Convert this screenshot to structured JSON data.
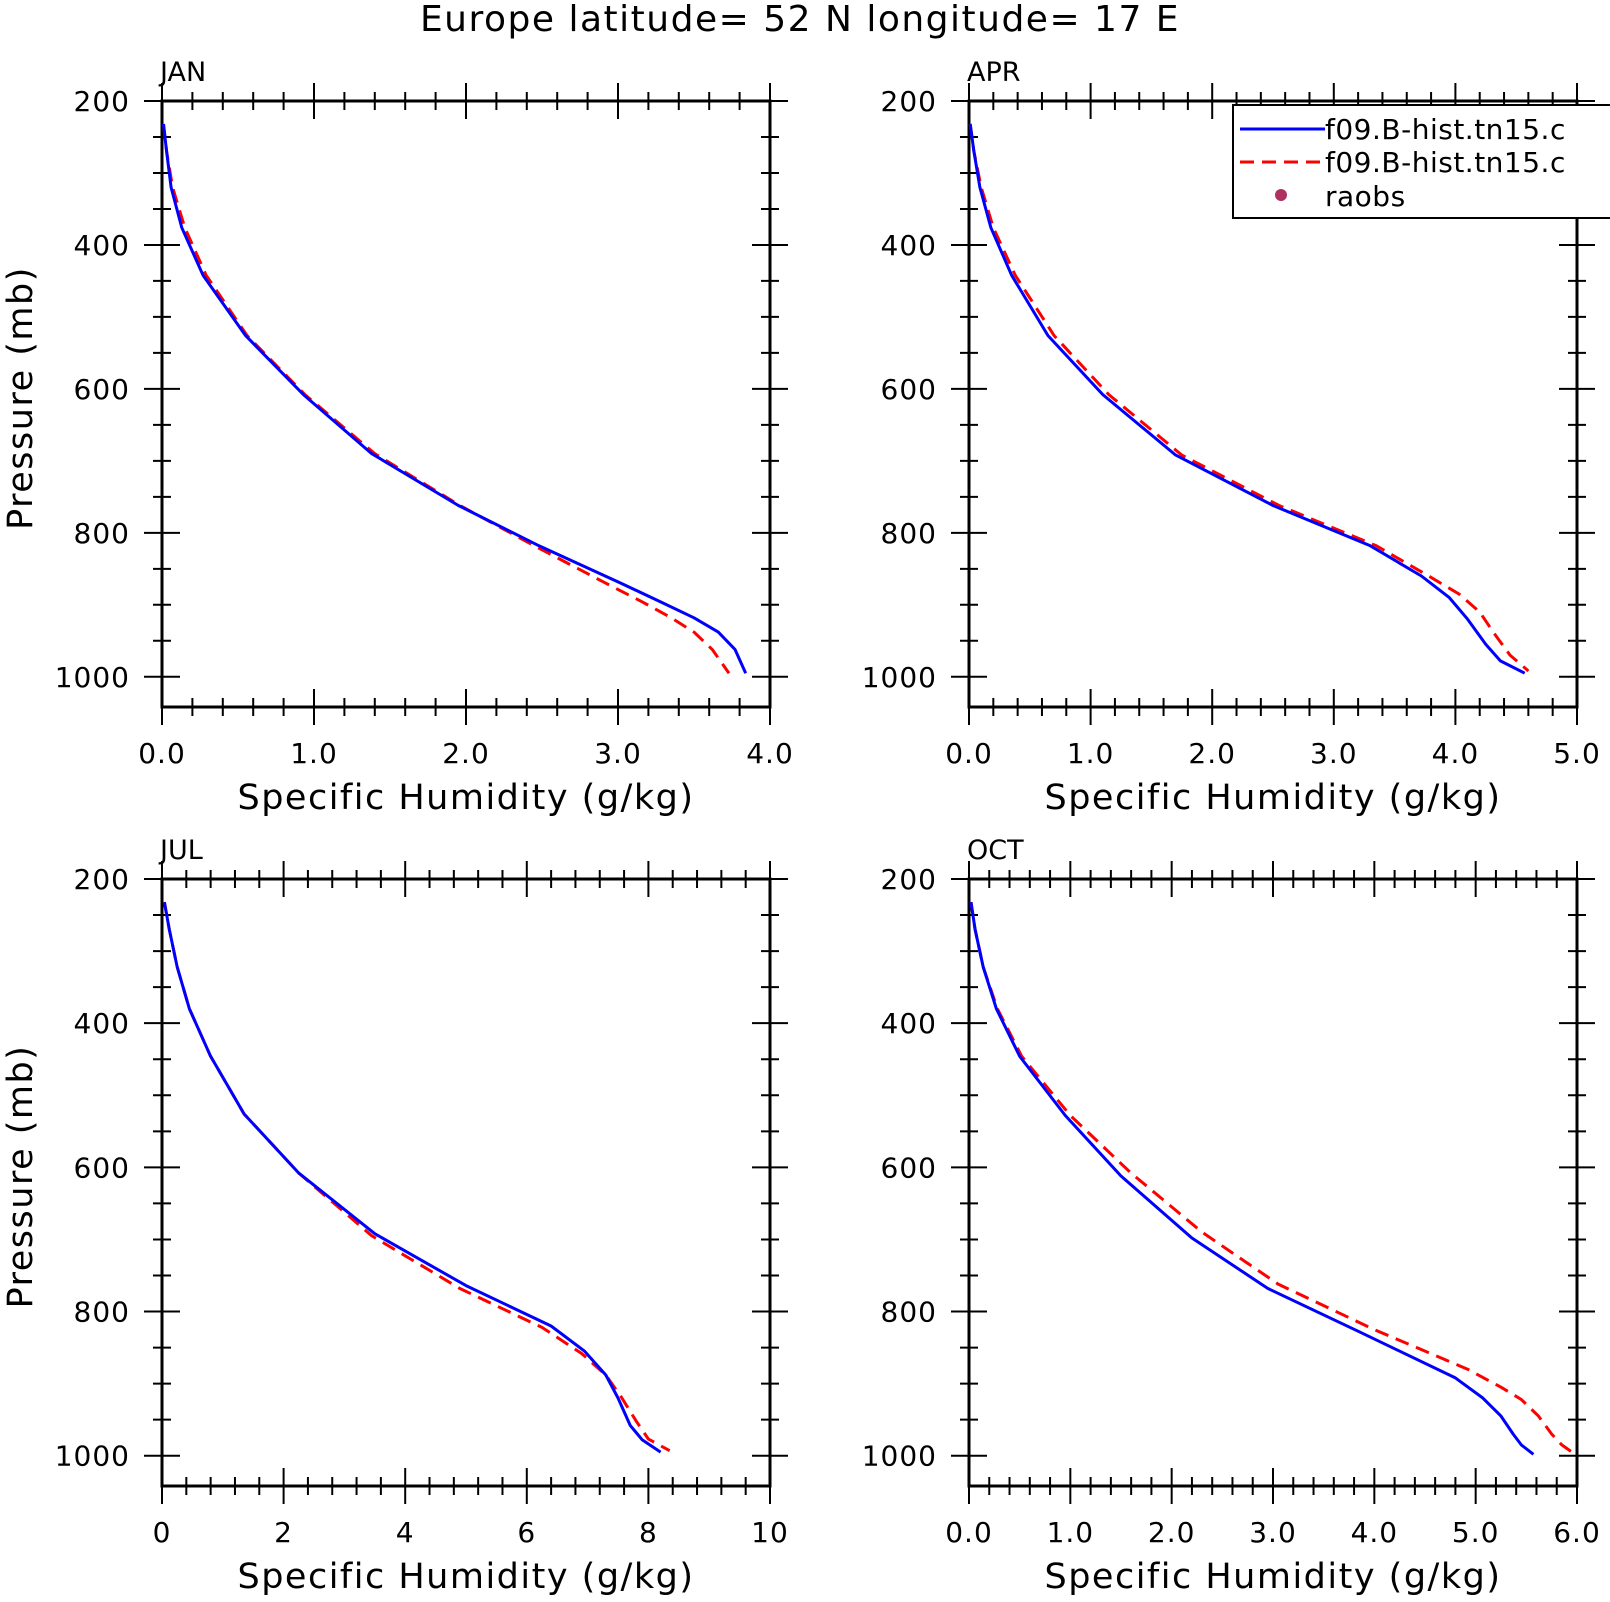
{
  "title": "Europe  latitude= 52 N longitude= 17 E",
  "legend": {
    "entries": [
      {
        "label": "f09.B-hist.tn15.c",
        "color": "#0000ff",
        "style": "solid"
      },
      {
        "label": "f09.B-hist.tn15.c",
        "color": "#ff0000",
        "style": "dashed"
      },
      {
        "label": "raobs",
        "color": "#b03060",
        "style": "marker"
      }
    ]
  },
  "chart_data": [
    {
      "type": "line",
      "title": "JAN",
      "xlabel": "Specific Humidity (g/kg)",
      "ylabel": "Pressure (mb)",
      "xlim": [
        0,
        4
      ],
      "ylim": [
        1000,
        200
      ],
      "y_inverted": true,
      "xticks": [
        0,
        1,
        2,
        3,
        4
      ],
      "xtick_labels": [
        "0.0",
        "1.0",
        "2.0",
        "3.0",
        "4.0"
      ],
      "yticks": [
        200,
        400,
        600,
        800,
        1000
      ],
      "ytick_labels": [
        "200",
        "400",
        "600",
        "800",
        "1000"
      ],
      "series": [
        {
          "color": "#0000ff",
          "style": "solid",
          "points": [
            [
              0.01,
              232
            ],
            [
              0.03,
              270
            ],
            [
              0.06,
              320
            ],
            [
              0.13,
              376
            ],
            [
              0.27,
              442
            ],
            [
              0.55,
              526
            ],
            [
              0.93,
              608
            ],
            [
              1.38,
              690
            ],
            [
              1.95,
              762
            ],
            [
              2.48,
              818
            ],
            [
              3.02,
              870
            ],
            [
              3.28,
              896
            ],
            [
              3.5,
              918
            ],
            [
              3.66,
              938
            ],
            [
              3.77,
              962
            ],
            [
              3.84,
              995
            ]
          ]
        },
        {
          "color": "#ff0000",
          "style": "dashed",
          "points": [
            [
              0.01,
              232
            ],
            [
              0.03,
              270
            ],
            [
              0.07,
              320
            ],
            [
              0.15,
              376
            ],
            [
              0.29,
              442
            ],
            [
              0.56,
              526
            ],
            [
              0.94,
              608
            ],
            [
              1.4,
              690
            ],
            [
              1.96,
              762
            ],
            [
              2.45,
              818
            ],
            [
              2.92,
              870
            ],
            [
              3.16,
              896
            ],
            [
              3.35,
              918
            ],
            [
              3.5,
              938
            ],
            [
              3.62,
              962
            ],
            [
              3.73,
              995
            ]
          ]
        }
      ]
    },
    {
      "type": "line",
      "title": "APR",
      "xlabel": "Specific Humidity (g/kg)",
      "ylabel": "",
      "xlim": [
        0,
        5
      ],
      "ylim": [
        1000,
        200
      ],
      "y_inverted": true,
      "xticks": [
        0,
        1,
        2,
        3,
        4,
        5
      ],
      "xtick_labels": [
        "0.0",
        "1.0",
        "2.0",
        "3.0",
        "4.0",
        "5.0"
      ],
      "yticks": [
        200,
        400,
        600,
        800,
        1000
      ],
      "ytick_labels": [
        "200",
        "400",
        "600",
        "800",
        "1000"
      ],
      "series": [
        {
          "color": "#0000ff",
          "style": "solid",
          "points": [
            [
              0.01,
              232
            ],
            [
              0.04,
              270
            ],
            [
              0.09,
              320
            ],
            [
              0.18,
              376
            ],
            [
              0.35,
              442
            ],
            [
              0.65,
              526
            ],
            [
              1.1,
              608
            ],
            [
              1.7,
              692
            ],
            [
              2.5,
              762
            ],
            [
              3.3,
              818
            ],
            [
              3.72,
              860
            ],
            [
              3.95,
              890
            ],
            [
              4.1,
              920
            ],
            [
              4.25,
              955
            ],
            [
              4.37,
              978
            ],
            [
              4.57,
              995
            ]
          ]
        },
        {
          "color": "#ff0000",
          "style": "dashed",
          "points": [
            [
              0.01,
              232
            ],
            [
              0.04,
              270
            ],
            [
              0.1,
              320
            ],
            [
              0.2,
              376
            ],
            [
              0.38,
              442
            ],
            [
              0.7,
              526
            ],
            [
              1.15,
              608
            ],
            [
              1.75,
              692
            ],
            [
              2.55,
              762
            ],
            [
              3.35,
              818
            ],
            [
              3.78,
              860
            ],
            [
              4.03,
              885
            ],
            [
              4.2,
              910
            ],
            [
              4.32,
              940
            ],
            [
              4.45,
              970
            ],
            [
              4.6,
              992
            ]
          ]
        }
      ]
    },
    {
      "type": "line",
      "title": "JUL",
      "xlabel": "Specific Humidity (g/kg)",
      "ylabel": "Pressure (mb)",
      "xlim": [
        0,
        10
      ],
      "ylim": [
        1000,
        200
      ],
      "y_inverted": true,
      "xticks": [
        0,
        2,
        4,
        6,
        8,
        10
      ],
      "xtick_labels": [
        "0",
        "2",
        "4",
        "6",
        "8",
        "10"
      ],
      "yticks": [
        200,
        400,
        600,
        800,
        1000
      ],
      "ytick_labels": [
        "200",
        "400",
        "600",
        "800",
        "1000"
      ],
      "series": [
        {
          "color": "#0000ff",
          "style": "solid",
          "points": [
            [
              0.04,
              232
            ],
            [
              0.12,
              270
            ],
            [
              0.25,
              322
            ],
            [
              0.45,
              380
            ],
            [
              0.8,
              446
            ],
            [
              1.35,
              526
            ],
            [
              2.25,
              608
            ],
            [
              3.5,
              692
            ],
            [
              5.0,
              764
            ],
            [
              6.4,
              820
            ],
            [
              6.95,
              855
            ],
            [
              7.3,
              888
            ],
            [
              7.5,
              920
            ],
            [
              7.7,
              958
            ],
            [
              7.9,
              978
            ],
            [
              8.2,
              995
            ]
          ]
        },
        {
          "color": "#ff0000",
          "style": "dashed",
          "points": [
            [
              0.04,
              232
            ],
            [
              0.12,
              270
            ],
            [
              0.25,
              322
            ],
            [
              0.45,
              380
            ],
            [
              0.8,
              446
            ],
            [
              1.35,
              526
            ],
            [
              2.25,
              608
            ],
            [
              3.45,
              695
            ],
            [
              4.9,
              768
            ],
            [
              6.25,
              822
            ],
            [
              6.9,
              858
            ],
            [
              7.3,
              888
            ],
            [
              7.55,
              918
            ],
            [
              7.8,
              952
            ],
            [
              8.0,
              977
            ],
            [
              8.35,
              993
            ]
          ]
        }
      ]
    },
    {
      "type": "line",
      "title": "OCT",
      "xlabel": "Specific Humidity (g/kg)",
      "ylabel": "",
      "xlim": [
        0,
        6
      ],
      "ylim": [
        1000,
        200
      ],
      "y_inverted": true,
      "xticks": [
        0,
        1,
        2,
        3,
        4,
        5,
        6
      ],
      "xtick_labels": [
        "0.0",
        "1.0",
        "2.0",
        "3.0",
        "4.0",
        "5.0",
        "6.0"
      ],
      "yticks": [
        200,
        400,
        600,
        800,
        1000
      ],
      "ytick_labels": [
        "200",
        "400",
        "600",
        "800",
        "1000"
      ],
      "series": [
        {
          "color": "#0000ff",
          "style": "solid",
          "points": [
            [
              0.02,
              232
            ],
            [
              0.06,
              270
            ],
            [
              0.14,
              322
            ],
            [
              0.27,
              380
            ],
            [
              0.5,
              446
            ],
            [
              0.95,
              528
            ],
            [
              1.5,
              612
            ],
            [
              2.2,
              698
            ],
            [
              2.95,
              768
            ],
            [
              3.85,
              828
            ],
            [
              4.8,
              892
            ],
            [
              5.07,
              920
            ],
            [
              5.25,
              945
            ],
            [
              5.37,
              970
            ],
            [
              5.45,
              985
            ],
            [
              5.57,
              998
            ]
          ]
        },
        {
          "color": "#ff0000",
          "style": "dashed",
          "points": [
            [
              0.02,
              232
            ],
            [
              0.06,
              270
            ],
            [
              0.14,
              322
            ],
            [
              0.28,
              380
            ],
            [
              0.52,
              446
            ],
            [
              1.0,
              528
            ],
            [
              1.6,
              608
            ],
            [
              2.3,
              690
            ],
            [
              3.05,
              762
            ],
            [
              4.0,
              825
            ],
            [
              4.92,
              880
            ],
            [
              5.25,
              905
            ],
            [
              5.45,
              922
            ],
            [
              5.62,
              945
            ],
            [
              5.75,
              970
            ],
            [
              5.85,
              985
            ],
            [
              5.95,
              995
            ]
          ]
        }
      ]
    }
  ]
}
